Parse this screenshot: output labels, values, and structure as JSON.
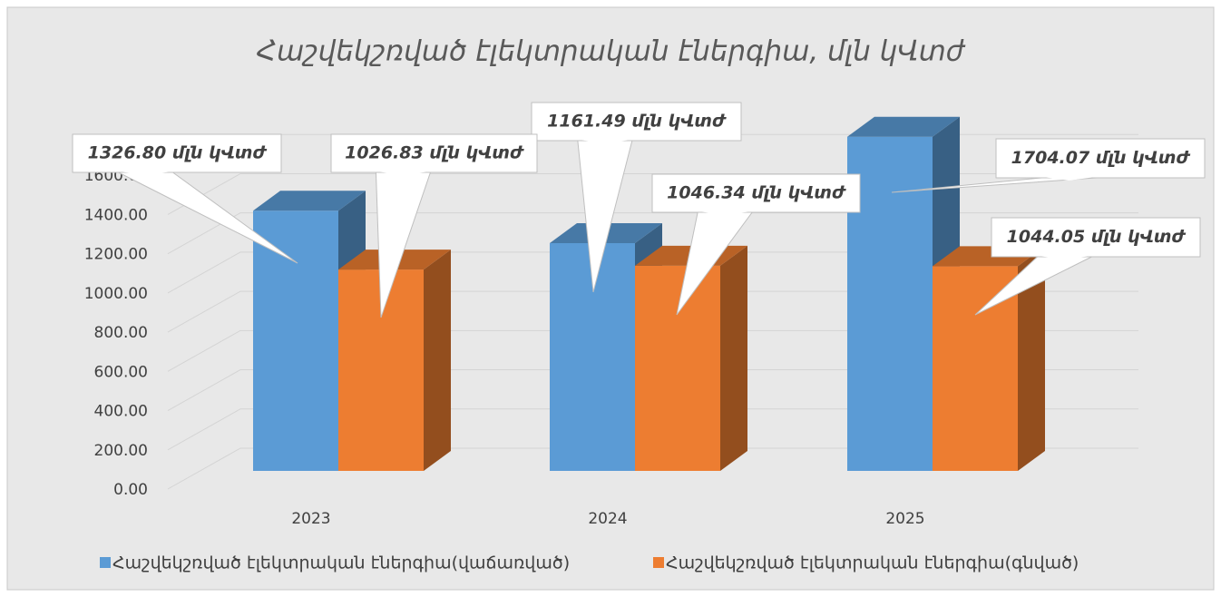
{
  "chart_data": {
    "type": "bar3d",
    "title": "Հաշվեկշռված էլեկտրական էներգիա, մլն կՎտժ",
    "categories": [
      "2023",
      "2024",
      "2025"
    ],
    "series": [
      {
        "name": "Հաշվեկշռված էլեկտրական էներգիա(վաճառված)",
        "color": "#5b9bd5",
        "values": [
          1326.8,
          1161.49,
          1704.07
        ],
        "value_labels": [
          "1326.80  մլն կՎտժ",
          "1161.49  մլն կՎտժ",
          "1704.07 մլն կՎտժ"
        ]
      },
      {
        "name": "Հաշվեկշռված էլեկտրական էներգիա(գնված)",
        "color": "#ed7d31",
        "values": [
          1026.83,
          1046.34,
          1044.05
        ],
        "value_labels": [
          "1026.83 մլն կՎտժ",
          "1046.34  մլն կՎտժ",
          "1044.05 մլն կՎտժ"
        ]
      }
    ],
    "ylim": [
      0,
      1800
    ],
    "yticks": [
      {
        "value": 0,
        "label": "0.00"
      },
      {
        "value": 200,
        "label": "200.00"
      },
      {
        "value": 400,
        "label": "400.00"
      },
      {
        "value": 600,
        "label": "600.00"
      },
      {
        "value": 800,
        "label": "800.00"
      },
      {
        "value": 1000,
        "label": "1000.00"
      },
      {
        "value": 1200,
        "label": "1200.00"
      },
      {
        "value": 1400,
        "label": "1400.00"
      },
      {
        "value": 1600,
        "label": "1600.00"
      }
    ],
    "grid": true,
    "legend": "bottom"
  }
}
